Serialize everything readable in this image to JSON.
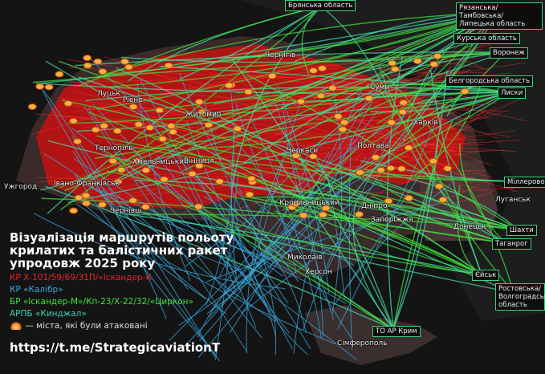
{
  "title_lines": [
    "Візуалізація маршрутів польоту",
    "крилатих та балістичних ракет",
    "упродовж 2025 року"
  ],
  "legend": [
    {
      "label": "КР Х-101/59/69/31П/«Іскандер-К",
      "color": "#e8232b"
    },
    {
      "label": "КР «Калібр»",
      "color": "#3aa8e0"
    },
    {
      "label": "БР «Іскандер-М»/Кп-23/Х-22/32/«Циркон»",
      "color": "#3ee63a"
    },
    {
      "label": "АРПБ «Кинджал»",
      "color": "#3fd0b0"
    }
  ],
  "attacked_legend": "— міста, які були атаковані",
  "attacked_icon": "explosion-icon",
  "url": "https://t.me/StrategicaviationT",
  "launch_areas": [
    "Брянська область",
    "Рязанська/Тамбовська/ Липецька область",
    "Курська область",
    "Воронеж",
    "Белгородська область",
    "Лиски",
    "Міллерово",
    "Шахти",
    "Таганрог",
    "Єйськ",
    "Ростовська/ Волгоградська область",
    "ТО АР Крим"
  ],
  "cities": [
    "Ужгород",
    "Луцьк",
    "Рівне",
    "Житомир",
    "Тернопіль",
    "Хмельницький",
    "Вінниця",
    "Івано-Франківськ",
    "Чернівці",
    "Чернігів",
    "Суми",
    "Харків",
    "Черкаси",
    "Полтава",
    "Кропивницький",
    "Дніпро",
    "Запоріжжя",
    "Миколаїв",
    "Херсон",
    "Сімферополь",
    "Луганськ",
    "Донецьк"
  ]
}
